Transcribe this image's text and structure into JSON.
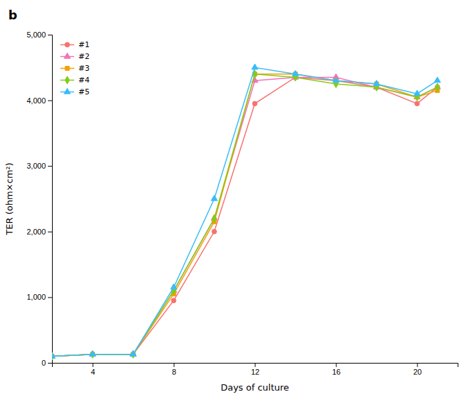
{
  "chart_data": {
    "type": "line",
    "title": "b",
    "x_label": "Days of culture",
    "y_label": "TER (ohm×cm²)",
    "x": [
      2,
      4,
      6,
      8,
      10,
      12,
      14,
      16,
      18,
      20,
      21
    ],
    "xlim": [
      2,
      22
    ],
    "xticks": [
      4,
      8,
      12,
      16,
      20
    ],
    "ylim": [
      0,
      5000
    ],
    "yticks": [
      0,
      {
        "value": 1000,
        "label": "1,000"
      },
      {
        "value": 2000,
        "label": "2,000"
      },
      {
        "value": 3000,
        "label": "3,000"
      },
      {
        "value": 4000,
        "label": "4,000"
      },
      {
        "value": 5000,
        "label": "5,000"
      }
    ],
    "grid": false,
    "legend": "upper left",
    "series": [
      {
        "name": "#1",
        "color": "#f87171",
        "marker": "circle",
        "values": [
          100,
          130,
          130,
          950,
          2000,
          3950,
          4350,
          4300,
          4200,
          3950,
          4200
        ]
      },
      {
        "name": "#2",
        "color": "#f472b6",
        "marker": "triangle",
        "values": [
          100,
          130,
          130,
          1100,
          2200,
          4300,
          4350,
          4350,
          4200,
          4050,
          4200
        ]
      },
      {
        "name": "#3",
        "color": "#f59e0b",
        "marker": "square",
        "values": [
          100,
          130,
          130,
          1050,
          2150,
          4400,
          4400,
          4300,
          4250,
          4050,
          4150
        ]
      },
      {
        "name": "#4",
        "color": "#84cc16",
        "marker": "diamond",
        "values": [
          100,
          130,
          130,
          1100,
          2200,
          4400,
          4350,
          4250,
          4200,
          4050,
          4200
        ]
      },
      {
        "name": "#5",
        "color": "#38bdf8",
        "marker": "triangle",
        "values": [
          100,
          130,
          130,
          1150,
          2500,
          4500,
          4400,
          4300,
          4250,
          4100,
          4300
        ]
      }
    ]
  }
}
